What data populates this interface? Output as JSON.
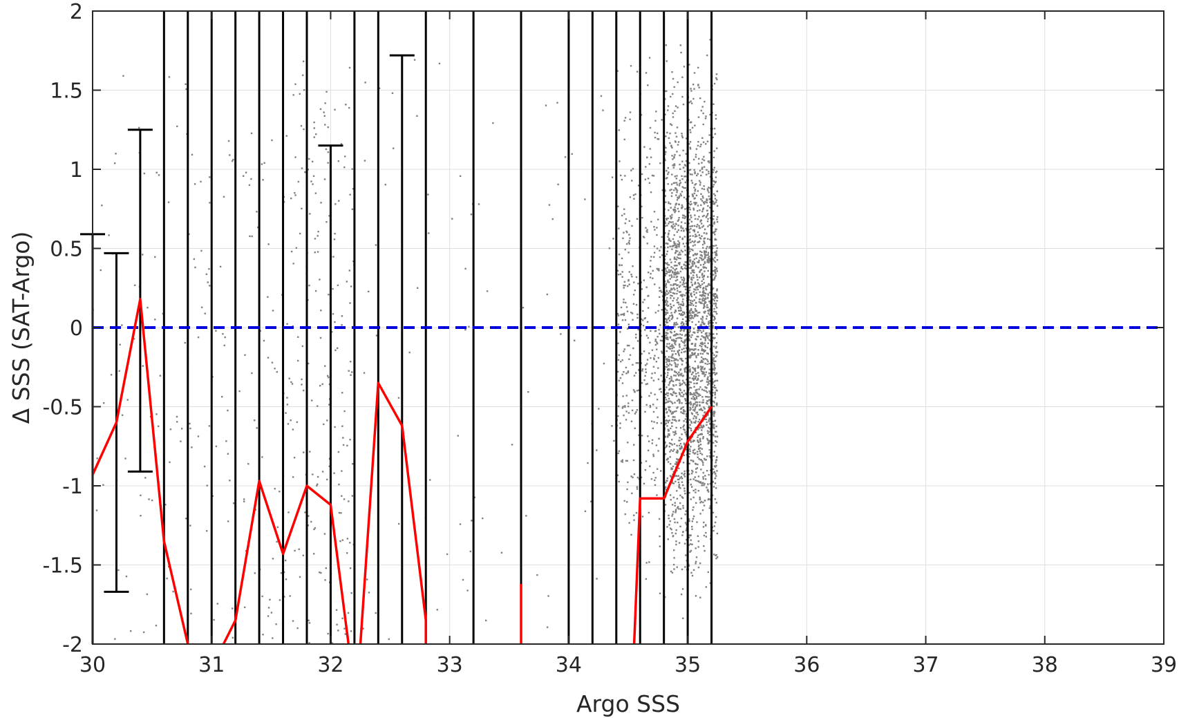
{
  "chart_data": {
    "type": "scatter",
    "xlabel": "Argo SSS",
    "ylabel": "Δ SSS (SAT-Argo)",
    "xlim": [
      30,
      39
    ],
    "ylim": [
      -2,
      2
    ],
    "xticks": [
      30,
      31,
      32,
      33,
      34,
      35,
      36,
      37,
      38,
      39
    ],
    "yticks": [
      -2,
      -1.5,
      -1,
      -0.5,
      0,
      0.5,
      1,
      1.5,
      2
    ],
    "xtick_labels": [
      "30",
      "31",
      "32",
      "33",
      "34",
      "35",
      "36",
      "37",
      "38",
      "39"
    ],
    "ytick_labels": [
      "-2",
      "-1.5",
      "-1",
      "-0.5",
      "0",
      "0.5",
      "1",
      "1.5",
      "2"
    ],
    "grid": true,
    "reference_line": {
      "y": 0,
      "style": "dashed",
      "color": "#0000dd"
    },
    "colors": {
      "scatter": "#808080",
      "mean_line": "#ff0000",
      "error_bars": "#000000",
      "axes": "#262626",
      "grid": "#dedede"
    },
    "mean_line": {
      "segments": [
        [
          [
            30.0,
            -0.93
          ],
          [
            30.2,
            -0.6
          ],
          [
            30.4,
            0.18
          ],
          [
            30.6,
            -1.35
          ],
          [
            30.8,
            -2.0
          ]
        ],
        [
          [
            31.1,
            -2.0
          ],
          [
            31.2,
            -1.85
          ],
          [
            31.4,
            -0.97
          ],
          [
            31.6,
            -1.43
          ],
          [
            31.8,
            -1.0
          ],
          [
            32.0,
            -1.12
          ],
          [
            32.15,
            -2.0
          ]
        ],
        [
          [
            32.25,
            -2.0
          ],
          [
            32.4,
            -0.35
          ],
          [
            32.6,
            -0.62
          ],
          [
            32.8,
            -1.85
          ],
          [
            32.8,
            -2.0
          ]
        ],
        [
          [
            33.6,
            -1.62
          ],
          [
            33.6,
            -2.0
          ]
        ],
        [
          [
            34.55,
            -2.0
          ],
          [
            34.6,
            -1.08
          ],
          [
            34.8,
            -1.08
          ],
          [
            35.0,
            -0.72
          ],
          [
            35.2,
            -0.5
          ]
        ]
      ]
    },
    "error_bars": [
      {
        "x": 30.0,
        "y": -0.93,
        "low": -2.0,
        "high": 0.59
      },
      {
        "x": 30.2,
        "y": -0.6,
        "low": -1.67,
        "high": 0.47
      },
      {
        "x": 30.4,
        "y": 0.18,
        "low": -0.91,
        "high": 1.25
      },
      {
        "x": 30.6,
        "y": -1.35,
        "low": -2.0,
        "high": 2.0
      },
      {
        "x": 30.8,
        "y": -2.0,
        "low": -2.0,
        "high": 2.0
      },
      {
        "x": 31.0,
        "y": -2.0,
        "low": -2.0,
        "high": 2.0
      },
      {
        "x": 31.2,
        "y": -1.85,
        "low": -2.0,
        "high": 2.0
      },
      {
        "x": 31.4,
        "y": -0.97,
        "low": -2.0,
        "high": 2.0
      },
      {
        "x": 31.6,
        "y": -1.43,
        "low": -2.0,
        "high": 2.0
      },
      {
        "x": 31.8,
        "y": -1.0,
        "low": -2.0,
        "high": 2.0
      },
      {
        "x": 32.0,
        "y": -1.12,
        "low": -2.0,
        "high": 1.15
      },
      {
        "x": 32.2,
        "y": -2.0,
        "low": -2.0,
        "high": 2.0
      },
      {
        "x": 32.4,
        "y": -0.35,
        "low": -2.0,
        "high": 2.0
      },
      {
        "x": 32.6,
        "y": -0.62,
        "low": -2.0,
        "high": 1.72
      },
      {
        "x": 32.8,
        "y": -1.85,
        "low": -2.0,
        "high": 2.0
      },
      {
        "x": 33.2,
        "y": -2.0,
        "low": -2.0,
        "high": 2.0
      },
      {
        "x": 33.6,
        "y": -1.62,
        "low": -2.0,
        "high": 2.0
      },
      {
        "x": 34.0,
        "y": -2.0,
        "low": -2.0,
        "high": 2.0
      },
      {
        "x": 34.2,
        "y": -2.0,
        "low": -2.0,
        "high": 2.0
      },
      {
        "x": 34.4,
        "y": -2.0,
        "low": -2.0,
        "high": 2.0
      },
      {
        "x": 34.6,
        "y": -1.08,
        "low": -2.0,
        "high": 2.0
      },
      {
        "x": 34.8,
        "y": -1.08,
        "low": -2.0,
        "high": 2.0
      },
      {
        "x": 35.0,
        "y": -0.72,
        "low": -2.0,
        "high": 2.0
      },
      {
        "x": 35.2,
        "y": -0.5,
        "low": -2.0,
        "high": 2.0
      }
    ],
    "scatter_density": [
      {
        "x_range": [
          30.0,
          30.8
        ],
        "y_range": [
          -2.0,
          1.6
        ],
        "count": 70
      },
      {
        "x_range": [
          30.8,
          31.6
        ],
        "y_range": [
          -2.0,
          1.3
        ],
        "count": 110
      },
      {
        "x_range": [
          31.6,
          32.2
        ],
        "y_range": [
          -2.0,
          1.7
        ],
        "count": 220
      },
      {
        "x_range": [
          32.2,
          33.2
        ],
        "y_range": [
          -2.0,
          1.7
        ],
        "count": 45
      },
      {
        "x_range": [
          33.2,
          34.4
        ],
        "y_range": [
          -2.0,
          1.5
        ],
        "count": 40
      },
      {
        "x_range": [
          34.4,
          34.8
        ],
        "y_range": [
          -2.0,
          2.0
        ],
        "count": 420
      },
      {
        "x_range": [
          34.8,
          35.25
        ],
        "y_range": [
          -2.0,
          2.0
        ],
        "count": 2600
      }
    ]
  }
}
